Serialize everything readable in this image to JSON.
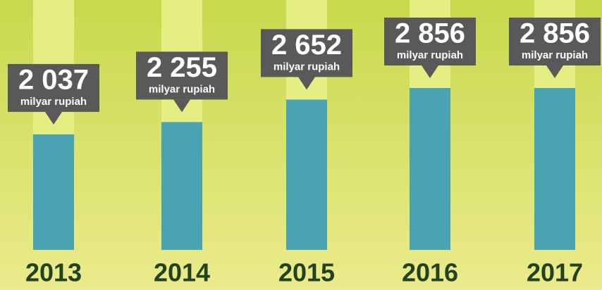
{
  "chart_data": {
    "type": "bar",
    "categories": [
      "2013",
      "2014",
      "2015",
      "2016",
      "2017"
    ],
    "values": [
      2037,
      2255,
      2652,
      2856,
      2856
    ],
    "value_labels": [
      "2 037",
      "2 255",
      "2 652",
      "2 856",
      "2 856"
    ],
    "unit_label": "milyar rupiah",
    "color": "#4aa3b0"
  }
}
